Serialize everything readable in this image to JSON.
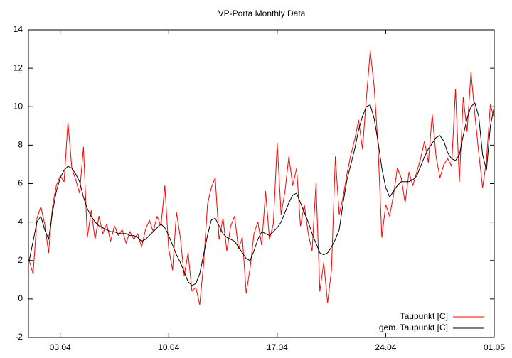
{
  "chart_data": {
    "type": "line",
    "title": "VP-Porta Monthly Data",
    "x": [
      1.0,
      1.25,
      1.5,
      1.75,
      2.0,
      2.25,
      2.5,
      2.75,
      3.0,
      3.25,
      3.5,
      3.75,
      4.0,
      4.25,
      4.5,
      4.75,
      5.0,
      5.25,
      5.5,
      5.75,
      6.0,
      6.25,
      6.5,
      6.75,
      7.0,
      7.25,
      7.5,
      7.75,
      8.0,
      8.25,
      8.5,
      8.75,
      9.0,
      9.25,
      9.5,
      9.75,
      10.0,
      10.25,
      10.5,
      10.75,
      11.0,
      11.25,
      11.5,
      11.75,
      12.0,
      12.25,
      12.5,
      12.75,
      13.0,
      13.25,
      13.5,
      13.75,
      14.0,
      14.25,
      14.5,
      14.75,
      15.0,
      15.25,
      15.5,
      15.75,
      16.0,
      16.25,
      16.5,
      16.75,
      17.0,
      17.25,
      17.5,
      17.75,
      18.0,
      18.25,
      18.5,
      18.75,
      19.0,
      19.25,
      19.5,
      19.75,
      20.0,
      20.25,
      20.5,
      20.75,
      21.0,
      21.25,
      21.5,
      21.75,
      22.0,
      22.25,
      22.5,
      22.75,
      23.0,
      23.25,
      23.5,
      23.75,
      24.0,
      24.25,
      24.5,
      24.75,
      25.0,
      25.25,
      25.5,
      25.75,
      26.0,
      26.25,
      26.5,
      26.75,
      27.0,
      27.25,
      27.5,
      27.75,
      28.0,
      28.25,
      28.5,
      28.75,
      29.0,
      29.25,
      29.5,
      29.75,
      30.0,
      30.25,
      30.5,
      30.75,
      31.0
    ],
    "series": [
      {
        "name": "Taupunkt [C]",
        "color": "#ff0000",
        "values": [
          2.0,
          1.3,
          4.2,
          4.8,
          3.9,
          2.4,
          4.8,
          5.9,
          6.4,
          6.1,
          9.2,
          6.8,
          6.2,
          5.5,
          7.9,
          3.2,
          4.6,
          3.1,
          4.3,
          3.4,
          3.9,
          3.0,
          3.8,
          3.3,
          3.6,
          2.9,
          3.5,
          3.1,
          3.4,
          2.7,
          3.6,
          4.1,
          3.5,
          4.3,
          3.8,
          5.9,
          2.6,
          1.5,
          4.5,
          3.2,
          1.2,
          2.4,
          0.4,
          0.6,
          -0.3,
          1.8,
          4.9,
          5.8,
          6.3,
          3.1,
          4.2,
          2.5,
          3.8,
          4.3,
          2.6,
          3.2,
          0.3,
          1.6,
          3.4,
          4.0,
          2.8,
          5.6,
          3.1,
          3.9,
          8.1,
          4.4,
          5.6,
          7.4,
          5.9,
          6.8,
          3.8,
          4.9,
          3.4,
          2.5,
          6.0,
          0.4,
          1.9,
          -0.2,
          1.5,
          7.4,
          4.4,
          5.3,
          6.5,
          7.5,
          8.3,
          9.3,
          7.8,
          10.4,
          12.9,
          11.1,
          8.0,
          3.2,
          4.9,
          4.3,
          5.4,
          6.8,
          6.3,
          5.0,
          6.6,
          5.9,
          6.6,
          7.3,
          8.2,
          7.1,
          9.6,
          7.4,
          6.3,
          7.0,
          7.3,
          6.9,
          10.9,
          6.1,
          10.5,
          8.7,
          11.8,
          9.6,
          7.6,
          5.8,
          7.2,
          10.1,
          9.4
        ]
      },
      {
        "name": "gem. Taupunkt [C]",
        "color": "#000000",
        "values": [
          2.0,
          3.0,
          4.0,
          4.3,
          3.6,
          3.1,
          4.5,
          5.6,
          6.3,
          6.7,
          6.9,
          6.8,
          6.5,
          6.1,
          5.3,
          4.7,
          4.3,
          4.0,
          3.8,
          3.7,
          3.6,
          3.5,
          3.5,
          3.4,
          3.4,
          3.4,
          3.3,
          3.3,
          3.2,
          3.0,
          3.1,
          3.3,
          3.5,
          3.7,
          3.9,
          3.7,
          3.3,
          2.8,
          2.3,
          1.9,
          1.4,
          0.9,
          0.7,
          0.8,
          1.3,
          2.3,
          3.3,
          4.1,
          4.2,
          3.8,
          3.4,
          3.2,
          3.1,
          3.0,
          2.7,
          2.4,
          2.1,
          2.0,
          2.5,
          3.1,
          3.5,
          3.4,
          3.3,
          3.5,
          3.7,
          4.0,
          4.5,
          5.0,
          5.4,
          5.5,
          5.0,
          4.5,
          4.0,
          3.4,
          2.9,
          2.4,
          2.3,
          2.4,
          2.7,
          3.1,
          3.6,
          5.0,
          6.2,
          7.0,
          7.8,
          8.8,
          9.5,
          10.0,
          10.1,
          9.4,
          8.2,
          6.8,
          5.8,
          5.3,
          5.6,
          5.9,
          6.1,
          6.1,
          6.1,
          6.2,
          6.4,
          6.9,
          7.4,
          7.8,
          8.1,
          8.4,
          8.5,
          8.2,
          7.6,
          7.3,
          7.2,
          7.5,
          8.5,
          9.4,
          10.0,
          10.2,
          9.5,
          7.5,
          6.7,
          9.0,
          10.0
        ]
      }
    ],
    "xlim": [
      0.95,
      31
    ],
    "xticks": [
      {
        "value": 3,
        "label": "03.04"
      },
      {
        "value": 10,
        "label": "10.04"
      },
      {
        "value": 17,
        "label": "17.04"
      },
      {
        "value": 24,
        "label": "24.04"
      },
      {
        "value": 31,
        "label": "01.05"
      }
    ],
    "ylim": [
      -2,
      14
    ],
    "yticks": [
      -2,
      0,
      2,
      4,
      6,
      8,
      10,
      12,
      14
    ],
    "grid": false,
    "legend": "bottom-right"
  }
}
